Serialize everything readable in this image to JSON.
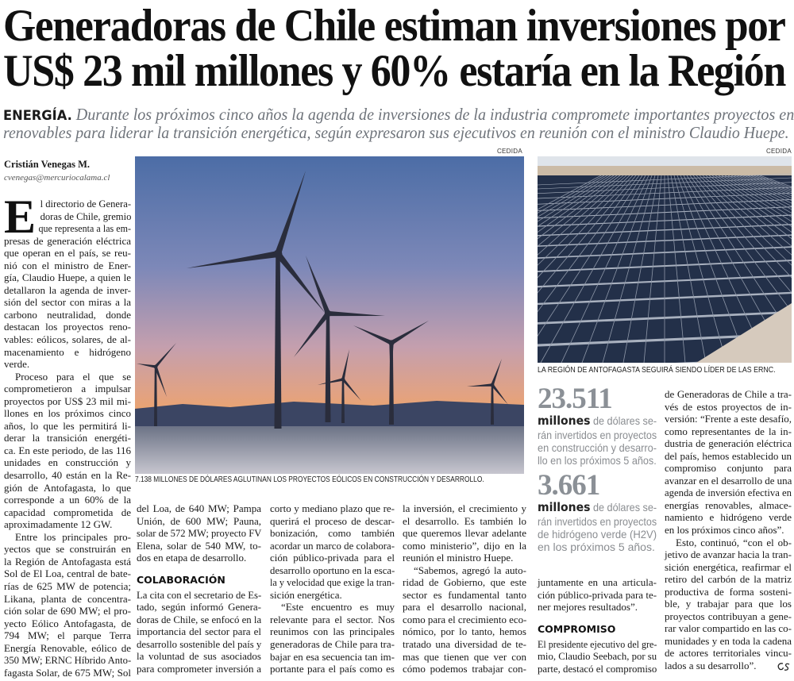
{
  "headline": {
    "lines": [
      "Generadoras de Chile estiman inversiones por",
      "US$ 23 mil millones y 60% estaría en la Región"
    ]
  },
  "lead": {
    "kicker": "ENERGÍA.",
    "lines": [
      "Durante los próximos cinco años la agenda de inversiones de la industria compromete importantes proyectos en",
      "renovables para liderar la transición energética, según expresaron sus ejecutivos en reunión con el ministro Claudio Huepe."
    ]
  },
  "byline": {
    "author": "Cristián Venegas M.",
    "email": "cvenegas@mercuriocalama.cl"
  },
  "photos": [
    {
      "credit": "CEDIDA",
      "caption": "7.138 MILLONES DE DÓLARES AGLUTINAN LOS PROYECTOS EÓLICOS EN CONSTRUCCIÓN Y DESARROLLO.",
      "subject": "wind-turbines"
    },
    {
      "credit": "CEDIDA",
      "caption": "LA REGIÓN DE ANTOFAGASTA SEGUIRÁ SIENDO LÍDER DE LAS ERNC.",
      "subject": "solar-panels"
    }
  ],
  "stats": [
    {
      "number": "23.511",
      "unit": "millones",
      "lines": [
        "de dólares se-",
        "rán invertidos en proyectos",
        "en construcción y desarro-",
        "llo en los próximos 5 años."
      ]
    },
    {
      "number": "3.661",
      "unit": "millones",
      "lines": [
        "de dólares se-",
        "rán invertidos en proyectos",
        "de hidrógeno verde (H2V)",
        "en los próximos 5 años."
      ]
    }
  ],
  "body": {
    "dropcap": "E",
    "columns": [
      {
        "blocks": [
          {
            "type": "p",
            "dropcap": true,
            "lines": [
              "l directorio de Genera-",
              "doras de Chile, gremio",
              "que representa a las em-",
              "presas de generación eléctrica",
              "que operan en el país, se reu-",
              "nió con el ministro de Ener-",
              "gía, Claudio Huepe, a quien le",
              "detallaron la agenda de inver-",
              "sión del sector con miras a la",
              "carbono neutralidad, donde",
              "destacan los proyectos reno-",
              "vables: eólicos, solares, de al-",
              "macenamiento e hidrógeno",
              "verde."
            ]
          },
          {
            "type": "p",
            "indent": true,
            "lines": [
              "Proceso para el que se",
              "comprometieron a impulsar",
              "proyectos por US$ 23 mil mi-",
              "llones en los próximos cinco",
              "años, lo que les permitirá li-",
              "derar la transición energéti-",
              "ca. En este periodo, de las 116",
              "unidades en construcción y",
              "desarrollo, 40 están en la Re-",
              "gión de Antofagasta, lo que",
              "corresponde a un 60% de la",
              "capacidad comprometida de",
              "aproximadamente 12 GW."
            ]
          },
          {
            "type": "p",
            "indent": true,
            "continues": true,
            "lines": [
              "Entre los principales pro-",
              "yectos que se construirán en",
              "la Región de Antofagasta está",
              "Sol de El Loa, central de bate-",
              "rías de 625 MW de potencia;",
              "Likana, planta de concentra-",
              "ción solar de 690 MW; el pro-",
              "yecto Eólico Antofagasta, de",
              "794 MW; el parque Terra",
              "Energía Renovable, eólico de",
              "350 MW; ERNC Híbrido Anto-",
              "fagasta Solar, de 675 MW; Sol"
            ]
          }
        ]
      },
      {
        "blocks": [
          {
            "type": "p",
            "lines": [
              "del Loa, de 640 MW; Pampa",
              "Unión, de 600 MW; Pauna,",
              "solar de 572 MW; proyecto FV",
              "Elena, solar de 540 MW, to-",
              "dos en etapa de desarrollo."
            ]
          },
          {
            "type": "h",
            "text": "COLABORACIÓN"
          },
          {
            "type": "p",
            "continues": true,
            "lines": [
              "La cita con el secretario de Es-",
              "tado, según informó Genera-",
              "doras de Chile, se enfocó en la",
              "importancia del sector para el",
              "desarrollo sostenible del país y",
              "la voluntad de sus asociados",
              "para comprometer inversión a"
            ]
          }
        ]
      },
      {
        "blocks": [
          {
            "type": "p",
            "lines": [
              "corto y mediano plazo que re-",
              "querirá el proceso de descar-",
              "bonización, como también",
              "acordar un marco de colabora-",
              "ción público-privada para el",
              "desarrollo oportuno en la esca-",
              "la y velocidad que exige la tran-",
              "sición energética."
            ]
          },
          {
            "type": "p",
            "indent": true,
            "continues": true,
            "lines": [
              "“Este encuentro es muy",
              "relevante para el sector. Nos",
              "reunimos con las principales",
              "generadoras de Chile para tra-",
              "bajar en esa secuencia tan im-",
              "portante para el país como es"
            ]
          }
        ]
      },
      {
        "blocks": [
          {
            "type": "p",
            "lines": [
              "la inversión, el crecimiento y",
              "el desarrollo. Es también lo",
              "que queremos llevar adelante",
              "como ministerio”, dijo en la",
              "reunión el ministro Huepe."
            ]
          },
          {
            "type": "p",
            "indent": true,
            "continues": true,
            "lines": [
              "“Sabemos, agregó la auto-",
              "ridad de Gobierno, que este",
              "sector es fundamental tanto",
              "para el desarrollo nacional,",
              "como para el crecimiento eco-",
              "nómico, por lo tanto, hemos",
              "tratado una diversidad de te-",
              "mas que tienen que ver con",
              "cómo podemos trabajar con-"
            ]
          }
        ]
      },
      {
        "blocks": [
          {
            "type": "p",
            "lines": [
              "juntamente en una articula-",
              "ción público-privada para te-",
              "ner mejores resultados”."
            ]
          },
          {
            "type": "h",
            "text": "COMPROMISO"
          },
          {
            "type": "p",
            "continues": true,
            "lines": [
              "El presidente ejecutivo del gre-",
              "mio, Claudio Seebach, por su",
              "parte, destacó el compromiso"
            ]
          }
        ]
      },
      {
        "blocks": [
          {
            "type": "p",
            "lines": [
              "de Generadoras de Chile a tra-",
              "vés de estos proyectos de in-",
              "versión: “Frente a este desafío,",
              "como representantes de la in-",
              "dustria de generación eléctrica",
              "del país, hemos establecido un",
              "compromiso conjunto para",
              "avanzar en el desarrollo de una",
              "agenda de inversión efectiva en",
              "energías renovables, almace-",
              "namiento e hidrógeno verde",
              "en los próximos cinco años”."
            ]
          },
          {
            "type": "p",
            "indent": true,
            "lines": [
              "Esto, continuó, “con el ob-",
              "jetivo de avanzar hacia la tran-",
              "sición energética, reafirmar el",
              "retiro del carbón de la matriz",
              "productiva de forma sosteni-",
              "ble, y trabajar para que los",
              "proyectos contribuyan a gene-",
              "rar valor compartido en las co-",
              "munidades y en toda la cadena",
              "de actores territoriales vincu-",
              "lados a su desarrollo”."
            ]
          }
        ]
      }
    ]
  },
  "colors": {
    "text": "#1a1a1a",
    "lead": "#6e737a",
    "stat_number": "#8b9096",
    "stat_text": "#8a8d91"
  }
}
